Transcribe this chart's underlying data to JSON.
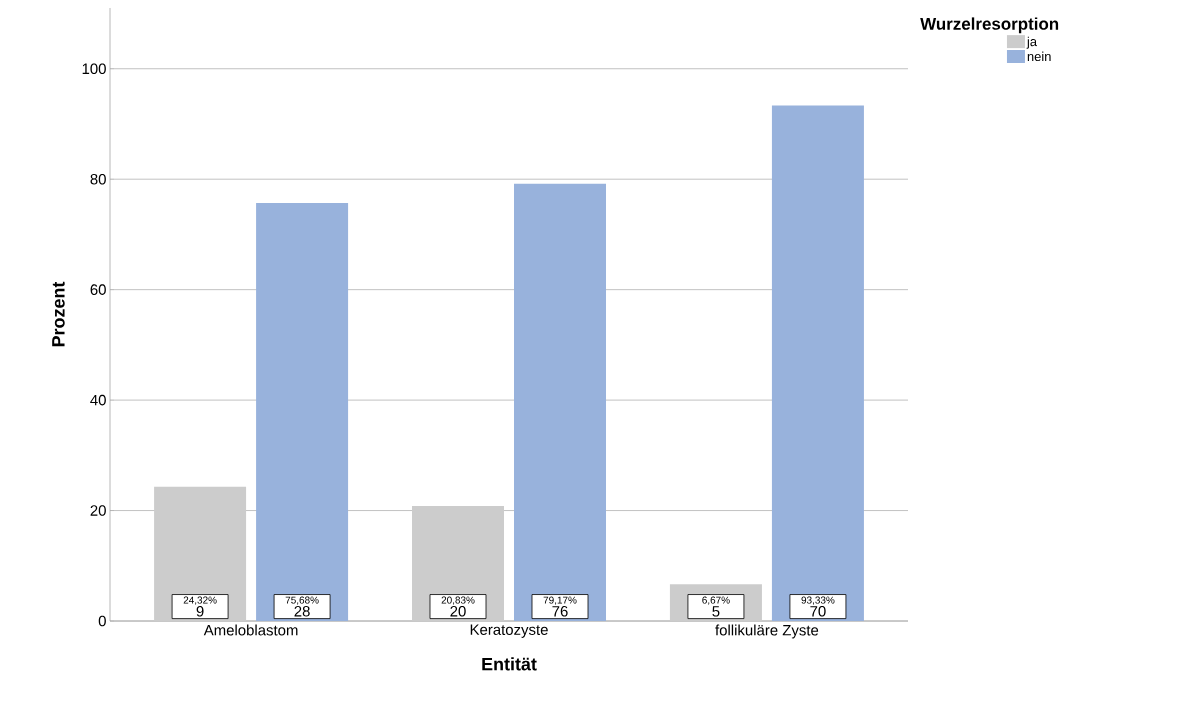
{
  "chart_data": {
    "type": "bar",
    "xlabel": "Entität",
    "ylabel": "Prozent",
    "legend_title": "Wurzelresorption",
    "categories": [
      "Ameloblastom",
      "Keratozyste",
      "follikuläre Zyste"
    ],
    "series": [
      {
        "name": "ja",
        "color": "#cccccc",
        "values": [
          24.32,
          20.83,
          6.67
        ],
        "value_labels": [
          "24,32%",
          "20,83%",
          "6,67%"
        ]
      },
      {
        "name": "nein",
        "color": "#98b2dc",
        "values": [
          75.68,
          79.17,
          93.33
        ],
        "value_labels": [
          "75,68%",
          "79,17%",
          "93,33%"
        ]
      }
    ],
    "annotations": [
      "9",
      "20",
      "5",
      "28",
      "76",
      "70"
    ],
    "ylim": [
      0,
      111
    ],
    "yticks": [
      0,
      20,
      40,
      60,
      80,
      100
    ],
    "grid": "y",
    "legend": "top right"
  }
}
